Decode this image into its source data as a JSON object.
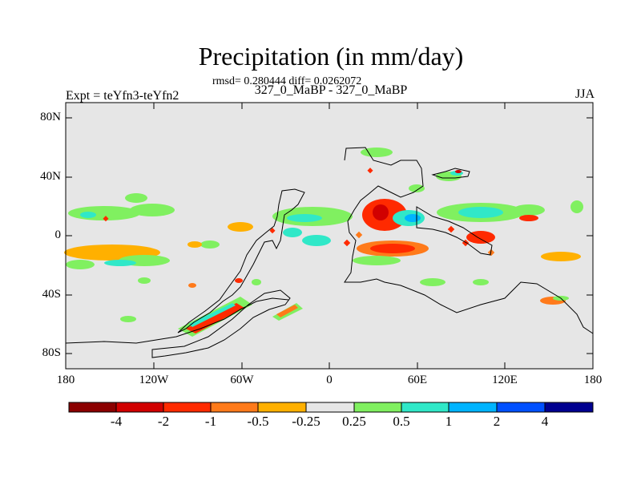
{
  "title": "Precipitation (in mm/day)",
  "stats": "rmsd= 0.280444 diff= 0.0262072",
  "center_string": "327_0_MaBP - 327_0_MaBP",
  "left_string": "Expt = teYfn3-teYfn2",
  "right_string": "JJA",
  "lat_labels": [
    "80N",
    "40N",
    "0",
    "40S",
    "80S"
  ],
  "lon_labels": [
    "180",
    "120W",
    "60W",
    "0",
    "60E",
    "120E",
    "180"
  ],
  "colorbar": {
    "labels": [
      "-4",
      "-2",
      "-1",
      "-0.5",
      "-0.25",
      "0.25",
      "0.5",
      "1",
      "2",
      "4"
    ],
    "colors": [
      "#8b0000",
      "#d10000",
      "#ff2a00",
      "#ff7a1a",
      "#ffb000",
      "#e6e6e6",
      "#80f060",
      "#30e8c8",
      "#00b4ff",
      "#0050ff",
      "#000090"
    ]
  }
}
